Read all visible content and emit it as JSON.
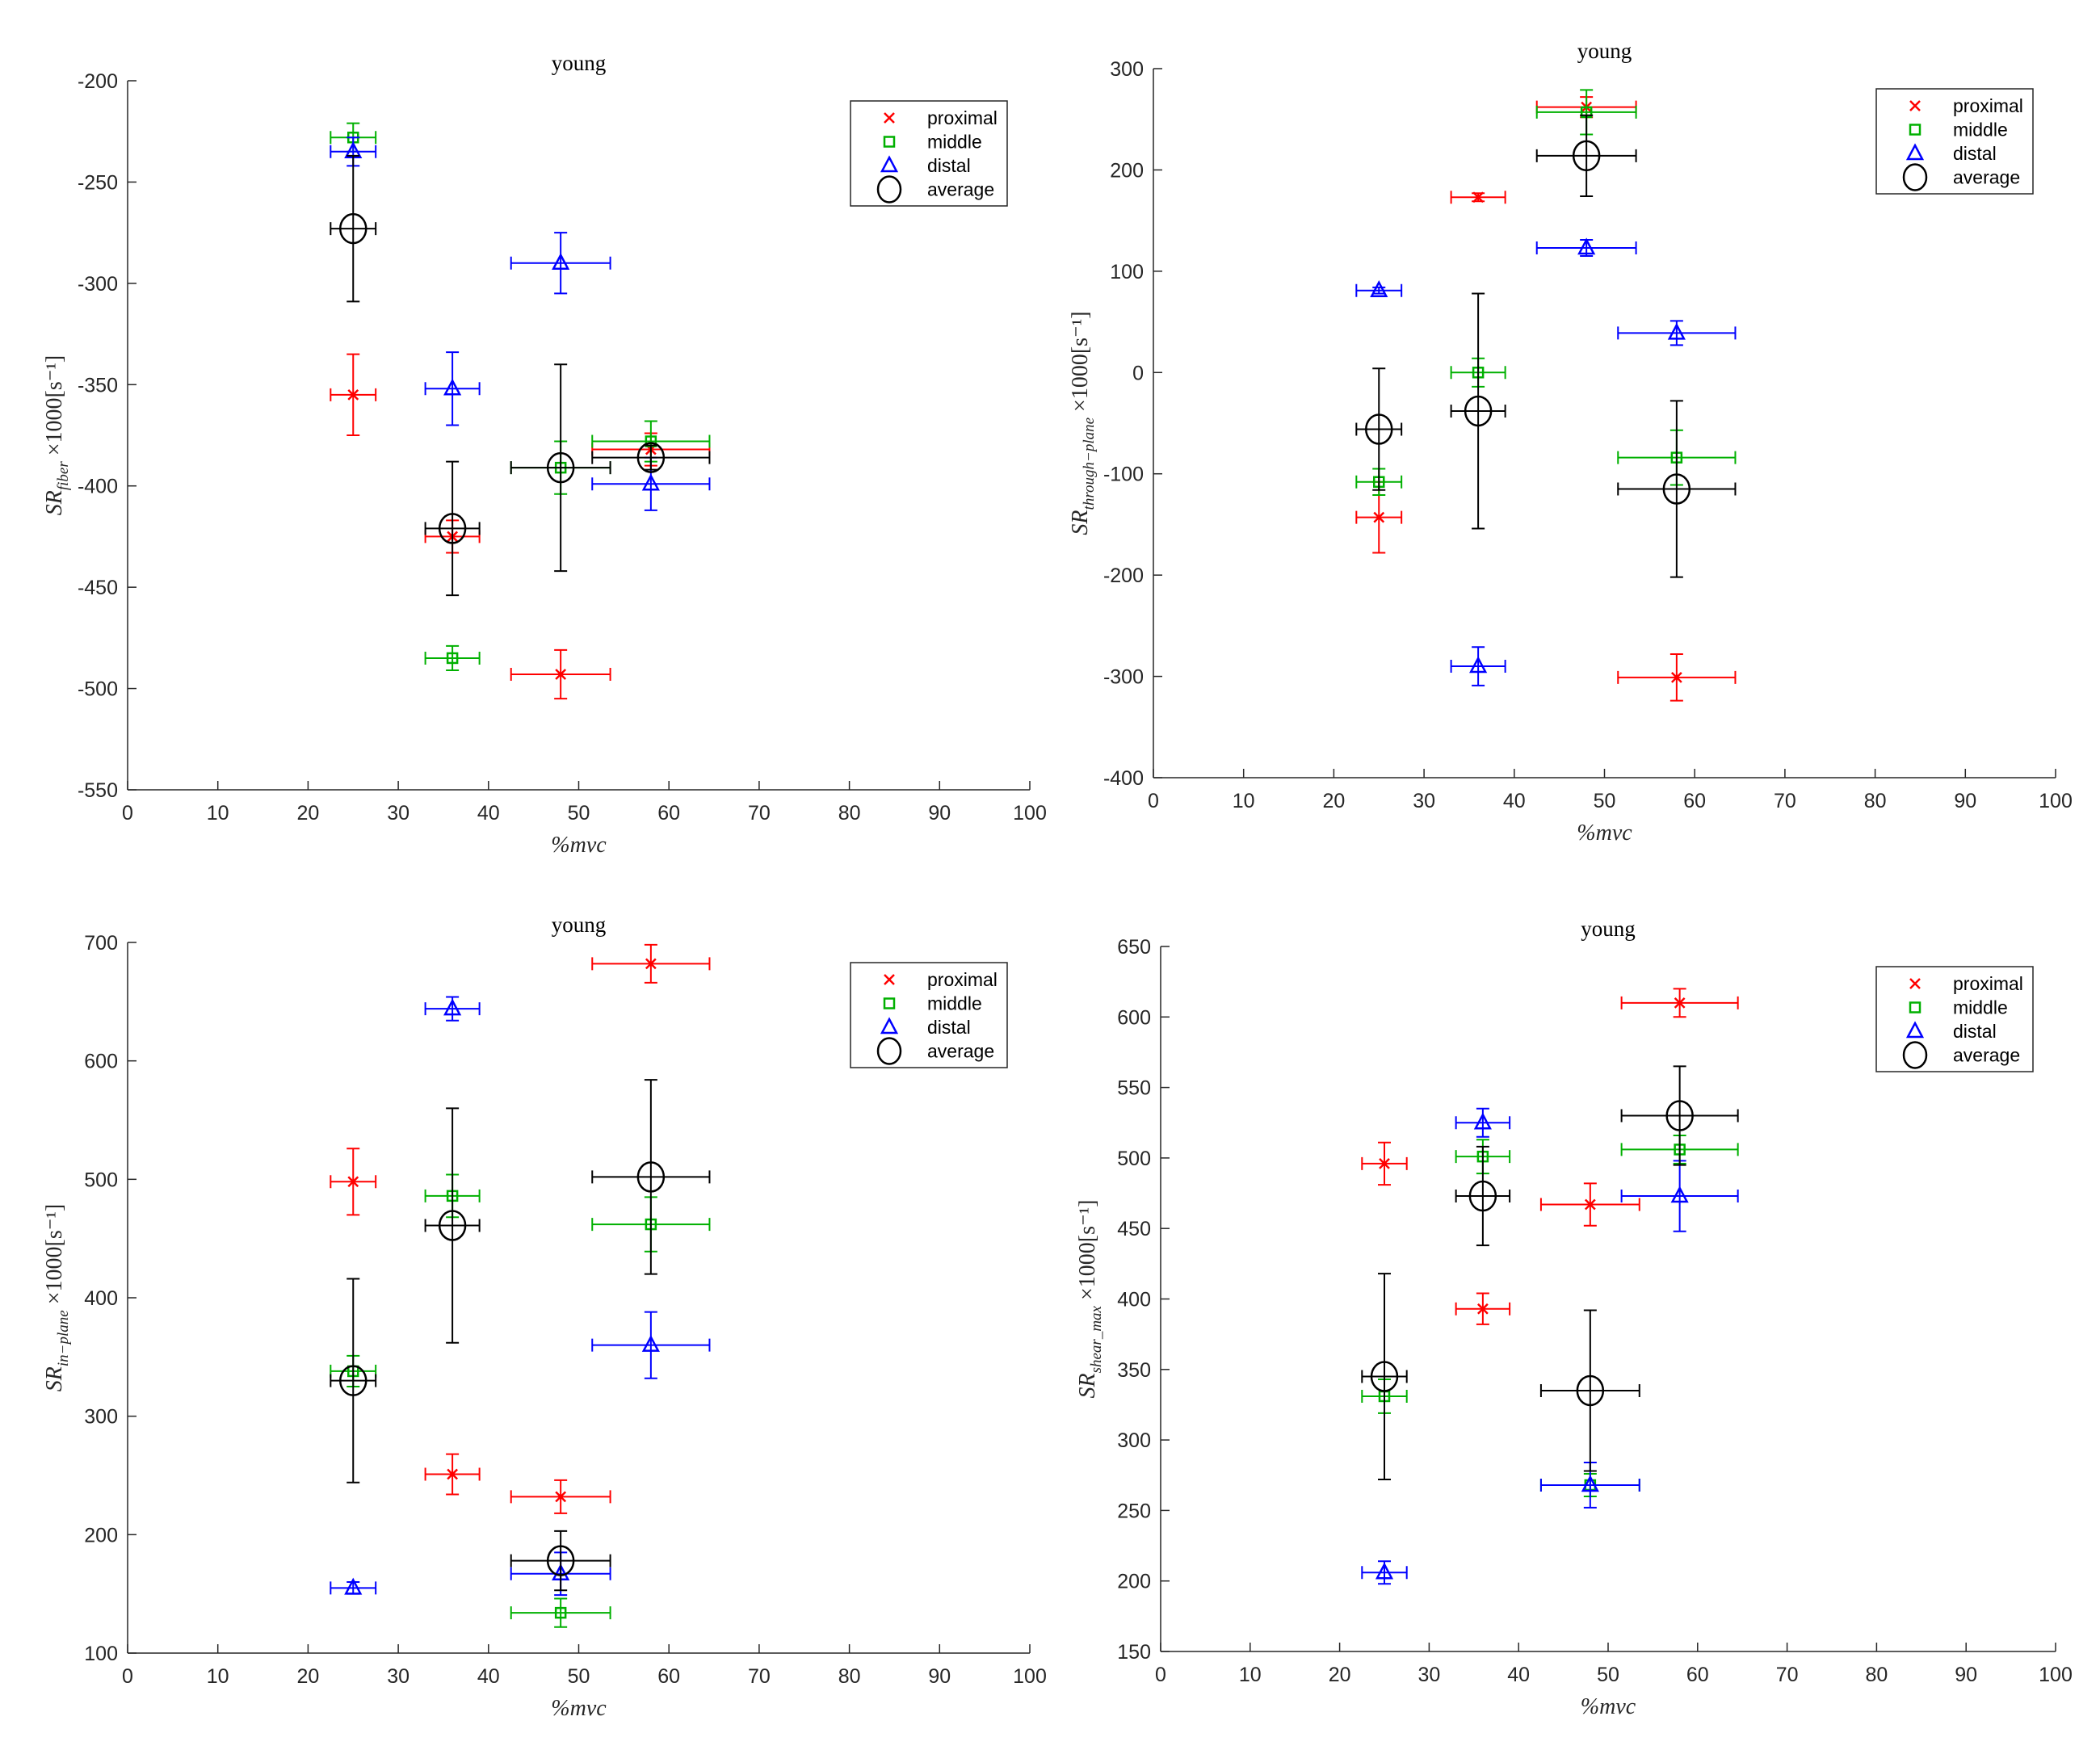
{
  "colors": {
    "proximal": "#ff0000",
    "middle": "#00b000",
    "distal": "#0000ff",
    "average": "#000000",
    "axis": "#262626"
  },
  "chart_data": [
    {
      "type": "scatter",
      "title": "young",
      "xlabel": "%mvc",
      "ylabel": {
        "main": "SR",
        "sub": "fiber",
        "suffix": " ×1000[s⁻¹]"
      },
      "xlim": [
        0,
        100
      ],
      "ylim": [
        -550,
        -200
      ],
      "xticks": [
        0,
        10,
        20,
        30,
        40,
        50,
        60,
        70,
        80,
        90,
        100
      ],
      "yticks": [
        -550,
        -500,
        -450,
        -400,
        -350,
        -300,
        -250,
        -200
      ],
      "legend": {
        "position": "top-right",
        "entries": [
          "proximal",
          "middle",
          "distal",
          "average"
        ]
      },
      "x": [
        25,
        36,
        48,
        58
      ],
      "xerr": [
        2.5,
        3,
        5.5,
        6.5
      ],
      "series": [
        {
          "name": "proximal",
          "marker": "x",
          "values": [
            -355,
            -425,
            -493,
            -382
          ],
          "yerr": [
            20,
            8,
            12,
            8
          ]
        },
        {
          "name": "middle",
          "marker": "square",
          "values": [
            -228,
            -485,
            -391,
            -378
          ],
          "yerr": [
            7,
            6,
            13,
            10
          ]
        },
        {
          "name": "distal",
          "marker": "triangle",
          "values": [
            -235,
            -352,
            -290,
            -399
          ],
          "yerr": [
            7,
            18,
            15,
            13
          ]
        },
        {
          "name": "average",
          "marker": "circle",
          "values": [
            -273,
            -421,
            -391,
            -386
          ],
          "yerr": [
            36,
            33,
            51,
            6
          ]
        }
      ]
    },
    {
      "type": "scatter",
      "title": "young",
      "xlabel": "%mvc",
      "ylabel": {
        "main": "SR",
        "sub": "through−plane",
        "suffix": " ×1000[s⁻¹]"
      },
      "xlim": [
        0,
        100
      ],
      "ylim": [
        -400,
        300
      ],
      "xticks": [
        0,
        10,
        20,
        30,
        40,
        50,
        60,
        70,
        80,
        90,
        100
      ],
      "yticks": [
        -400,
        -300,
        -200,
        -100,
        0,
        100,
        200,
        300
      ],
      "legend": {
        "position": "top-right",
        "entries": [
          "proximal",
          "middle",
          "distal",
          "average"
        ]
      },
      "x": [
        25,
        36,
        48,
        58
      ],
      "xerr": [
        2.5,
        3,
        5.5,
        6.5
      ],
      "series": [
        {
          "name": "proximal",
          "marker": "x",
          "values": [
            -143,
            173,
            262,
            -301
          ],
          "yerr": [
            35,
            4,
            10,
            23
          ]
        },
        {
          "name": "middle",
          "marker": "square",
          "values": [
            -108,
            0,
            257,
            -84
          ],
          "yerr": [
            13,
            14,
            22,
            27
          ]
        },
        {
          "name": "distal",
          "marker": "triangle",
          "values": [
            81,
            -290,
            123,
            39
          ],
          "yerr": [
            3,
            19,
            8,
            12
          ]
        },
        {
          "name": "average",
          "marker": "circle",
          "values": [
            -56,
            -38,
            214,
            -115
          ],
          "yerr": [
            60,
            116,
            40,
            87
          ]
        }
      ]
    },
    {
      "type": "scatter",
      "title": "young",
      "xlabel": "%mvc",
      "ylabel": {
        "main": "SR",
        "sub": "in−plane",
        "suffix": " ×1000[s⁻¹]"
      },
      "xlim": [
        0,
        100
      ],
      "ylim": [
        100,
        700
      ],
      "xticks": [
        0,
        10,
        20,
        30,
        40,
        50,
        60,
        70,
        80,
        90,
        100
      ],
      "yticks": [
        100,
        200,
        300,
        400,
        500,
        600,
        700
      ],
      "legend": {
        "position": "top-right",
        "entries": [
          "proximal",
          "middle",
          "distal",
          "average"
        ]
      },
      "x": [
        25,
        36,
        48,
        58
      ],
      "xerr": [
        2.5,
        3,
        5.5,
        6.5
      ],
      "series": [
        {
          "name": "proximal",
          "marker": "x",
          "values": [
            498,
            251,
            232,
            682
          ],
          "yerr": [
            28,
            17,
            14,
            16
          ]
        },
        {
          "name": "middle",
          "marker": "square",
          "values": [
            338,
            486,
            134,
            462
          ],
          "yerr": [
            13,
            18,
            12,
            23
          ]
        },
        {
          "name": "distal",
          "marker": "triangle",
          "values": [
            155,
            644,
            167,
            360
          ],
          "yerr": [
            5,
            10,
            18,
            28
          ]
        },
        {
          "name": "average",
          "marker": "circle",
          "values": [
            330,
            461,
            178,
            502
          ],
          "yerr": [
            86,
            99,
            25,
            82
          ]
        }
      ]
    },
    {
      "type": "scatter",
      "title": "young",
      "xlabel": "%mvc",
      "ylabel": {
        "main": "SR",
        "sub": "shear_max",
        "suffix": " ×1000[s⁻¹]"
      },
      "xlim": [
        0,
        100
      ],
      "ylim": [
        150,
        650
      ],
      "xticks": [
        0,
        10,
        20,
        30,
        40,
        50,
        60,
        70,
        80,
        90,
        100
      ],
      "yticks": [
        150,
        200,
        250,
        300,
        350,
        400,
        450,
        500,
        550,
        600,
        650
      ],
      "legend": {
        "position": "top-right",
        "entries": [
          "proximal",
          "middle",
          "distal",
          "average"
        ]
      },
      "x": [
        25,
        36,
        48,
        58
      ],
      "xerr": [
        2.5,
        3,
        5.5,
        6.5
      ],
      "series": [
        {
          "name": "proximal",
          "marker": "x",
          "values": [
            496,
            393,
            467,
            610
          ],
          "yerr": [
            15,
            11,
            15,
            10
          ]
        },
        {
          "name": "middle",
          "marker": "square",
          "values": [
            331,
            501,
            268,
            506
          ],
          "yerr": [
            12,
            12,
            8,
            10
          ]
        },
        {
          "name": "distal",
          "marker": "triangle",
          "values": [
            206,
            525,
            268,
            473
          ],
          "yerr": [
            8,
            10,
            16,
            25
          ]
        },
        {
          "name": "average",
          "marker": "circle",
          "values": [
            345,
            473,
            335,
            530
          ],
          "yerr": [
            73,
            35,
            57,
            35
          ]
        }
      ]
    }
  ]
}
